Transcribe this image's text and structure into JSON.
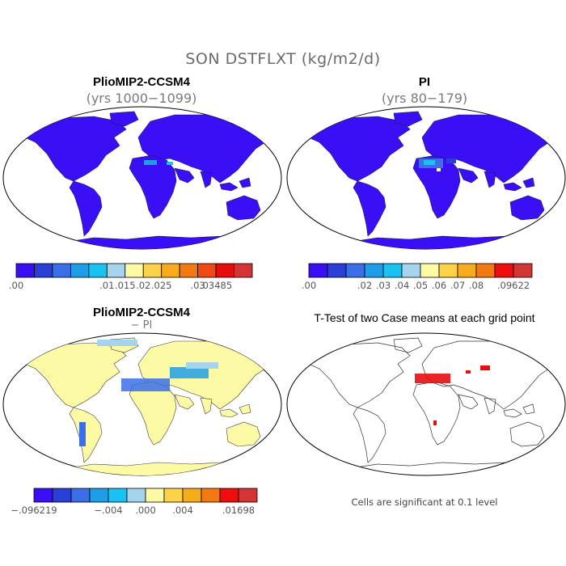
{
  "figure": {
    "title": "SON DSTFLXT (kg/m2/d)"
  },
  "panels": [
    {
      "id": "top-left",
      "title": "PlioMIP2-CCSM4",
      "subtitle": "(yrs 1000−1099)",
      "colorbar": {
        "colors": [
          "#3a0ff5",
          "#2a3fd6",
          "#3b6fe8",
          "#1e9ee8",
          "#19c2f0",
          "#a6d4ec",
          "#fdfaa5",
          "#fbd24a",
          "#f7ac1c",
          "#f37a12",
          "#ef4a13",
          "#e80d0d",
          "#d33434"
        ],
        "labels": [
          {
            "text": ".00",
            "index": 0
          },
          {
            "text": ".01",
            "index": 4
          },
          {
            "text": ".015",
            "index": 5
          },
          {
            "text": ".02",
            "index": 6
          },
          {
            "text": ".025",
            "index": 7
          },
          {
            "text": ".03",
            "index": 9
          },
          {
            "text": ".03485",
            "index": 10
          }
        ]
      }
    },
    {
      "id": "top-right",
      "title": "PI",
      "subtitle": "(yrs 80−179)",
      "colorbar": {
        "colors": [
          "#3a0ff5",
          "#2a3fd6",
          "#3b6fe8",
          "#1e9ee8",
          "#19c2f0",
          "#a6d4ec",
          "#fdfaa5",
          "#fbd24a",
          "#f7ac1c",
          "#f37a12",
          "#ef0d0d",
          "#d33434"
        ],
        "labels": [
          {
            "text": ".00",
            "index": 0
          },
          {
            "text": ".02",
            "index": 2
          },
          {
            "text": ".03",
            "index": 3
          },
          {
            "text": ".04",
            "index": 4
          },
          {
            "text": ".05",
            "index": 5
          },
          {
            "text": ".06",
            "index": 6
          },
          {
            "text": ".07",
            "index": 7
          },
          {
            "text": ".08",
            "index": 8
          },
          {
            "text": ".09622",
            "index": 10
          }
        ]
      }
    },
    {
      "id": "bottom-left",
      "title": "PlioMIP2-CCSM4",
      "subtitle": "− PI",
      "colorbar": {
        "colors": [
          "#3a0ff5",
          "#2a3fd6",
          "#3b6fe8",
          "#1e9ee8",
          "#19c2f0",
          "#a6d4ec",
          "#fdfaa5",
          "#fbd24a",
          "#f7ac1c",
          "#f37a12",
          "#ef0d0d",
          "#d33434"
        ],
        "labels": [
          {
            "text": "−.096219",
            "index": 0
          },
          {
            "text": "−.004",
            "index": 3
          },
          {
            "text": ".000",
            "index": 5
          },
          {
            "text": ".004",
            "index": 7
          },
          {
            "text": ".01698",
            "index": 10
          }
        ]
      }
    },
    {
      "id": "bottom-right",
      "title": "T-Test of two Case means at each grid point",
      "subtitle": "",
      "note": "Cells are significant at 0.1 level"
    }
  ]
}
